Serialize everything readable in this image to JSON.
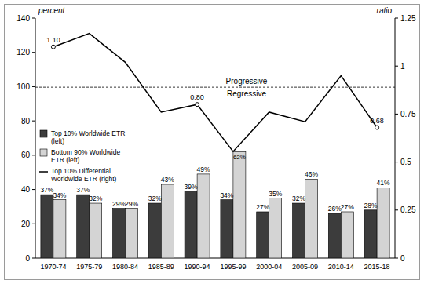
{
  "chart_data": {
    "type": "bar",
    "y_label": "percent",
    "y2_label": "ratio",
    "categories": [
      "1970-74",
      "1975-79",
      "1980-84",
      "1985-89",
      "1990-94",
      "1995-99",
      "2000-04",
      "2005-09",
      "2010-14",
      "2015-18"
    ],
    "series": [
      {
        "name": "Top 10% Worldwide ETR (left)",
        "type": "bar",
        "color": "#3c3c3c",
        "values": [
          37,
          37,
          29,
          32,
          39,
          34,
          27,
          32,
          26,
          28
        ],
        "data_labels": true,
        "value_labels": [
          "37%",
          "37%",
          "29%",
          "32%",
          "39%",
          "34%",
          "27%",
          "32%",
          "26%",
          "28%"
        ]
      },
      {
        "name": "Bottom 90% Worldwide ETR (left)",
        "type": "bar",
        "color": "#d4d4d4",
        "values": [
          34,
          32,
          29,
          43,
          49,
          62,
          35,
          46,
          27,
          41
        ],
        "data_labels": true,
        "value_labels": [
          "34%",
          "32%",
          "29%",
          "43%",
          "49%",
          "62%",
          "35%",
          "46%",
          "27%",
          "41%"
        ]
      },
      {
        "name": "Top 10% Differential Worldwide ETR (right)",
        "type": "line",
        "axis": "y2",
        "color": "#000000",
        "values": [
          1.1,
          1.17,
          1.02,
          0.76,
          0.8,
          0.555,
          0.76,
          0.71,
          0.95,
          0.68
        ],
        "data_labels": true,
        "value_labels": [
          "1.10",
          null,
          null,
          null,
          "0.80",
          null,
          null,
          null,
          null,
          "0.68"
        ]
      }
    ],
    "ylim": [
      0,
      140
    ],
    "yticks": [
      0,
      20,
      40,
      60,
      80,
      100,
      120,
      140
    ],
    "y2lim": [
      0,
      1.25
    ],
    "y2ticks": [
      0,
      0.25,
      0.5,
      0.75,
      1,
      1.25
    ],
    "reference_line": {
      "value": 0.89,
      "axis": "y2",
      "line_style": "dashed",
      "above": "Progressive",
      "below": "Regressive"
    },
    "legend": "left"
  }
}
